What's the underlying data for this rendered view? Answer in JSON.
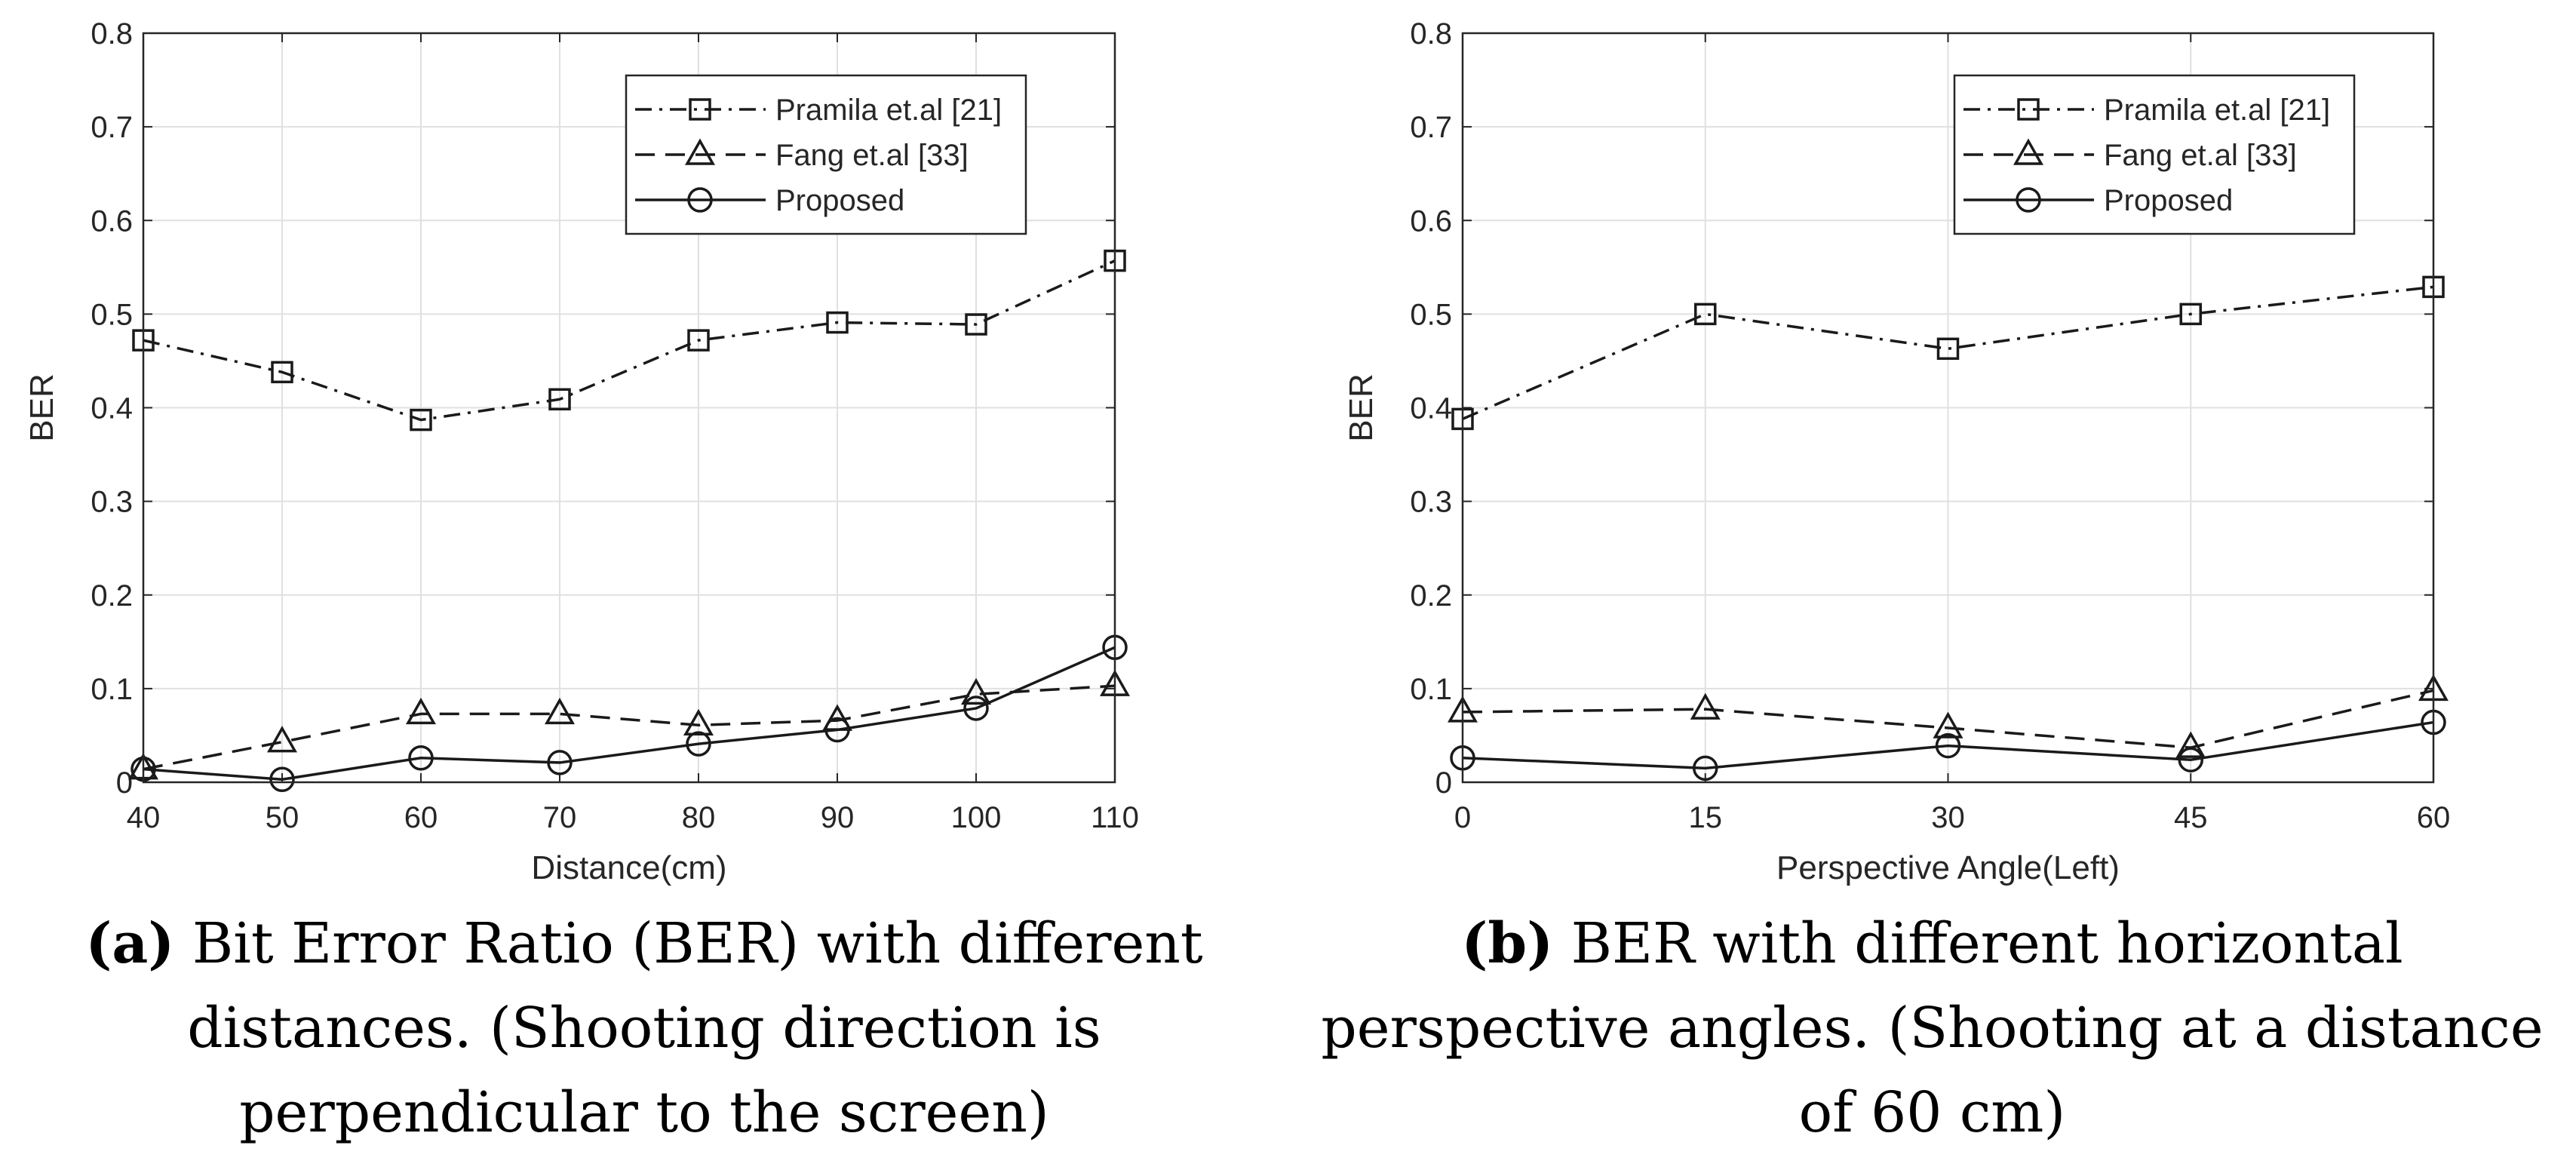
{
  "chart_data": [
    {
      "type": "line",
      "x": [
        40,
        50,
        60,
        70,
        80,
        90,
        100,
        110
      ],
      "xticks": [
        "40",
        "50",
        "60",
        "70",
        "80",
        "90",
        "100",
        "110"
      ],
      "xlim": [
        40,
        110
      ],
      "ylim": [
        0,
        0.8
      ],
      "yticks": [
        "0",
        "0.1",
        "0.2",
        "0.3",
        "0.4",
        "0.5",
        "0.6",
        "0.7",
        "0.8"
      ],
      "xlabel": "Distance(cm)",
      "ylabel": "BER",
      "grid": true,
      "legend_position": "top-right",
      "series": [
        {
          "name": "Pramila et.al [21]",
          "marker": "square",
          "dash": "dash-dot",
          "values": [
            0.472,
            0.438,
            0.387,
            0.409,
            0.472,
            0.491,
            0.489,
            0.557
          ]
        },
        {
          "name": "Fang et.al [33]",
          "marker": "triangle",
          "dash": "dashed",
          "values": [
            0.014,
            0.043,
            0.073,
            0.073,
            0.061,
            0.066,
            0.094,
            0.103
          ]
        },
        {
          "name": "Proposed",
          "marker": "circle",
          "dash": "solid",
          "values": [
            0.014,
            0.003,
            0.026,
            0.021,
            0.041,
            0.056,
            0.079,
            0.144
          ]
        }
      ],
      "caption": {
        "label": "(a)",
        "text": "Bit Error Ratio (BER) with different distances. (Shooting direction is perpendicular to the screen)"
      }
    },
    {
      "type": "line",
      "x": [
        0,
        15,
        30,
        45,
        60
      ],
      "xticks": [
        "0",
        "15",
        "30",
        "45",
        "60"
      ],
      "xlim": [
        0,
        60
      ],
      "ylim": [
        0,
        0.8
      ],
      "yticks": [
        "0",
        "0.1",
        "0.2",
        "0.3",
        "0.4",
        "0.5",
        "0.6",
        "0.7",
        "0.8"
      ],
      "xlabel": "Perspective Angle(Left)",
      "ylabel": "BER",
      "grid": true,
      "legend_position": "top-right",
      "series": [
        {
          "name": "Pramila et.al [21]",
          "marker": "square",
          "dash": "dash-dot",
          "values": [
            0.388,
            0.5,
            0.463,
            0.5,
            0.529
          ]
        },
        {
          "name": "Fang et.al [33]",
          "marker": "triangle",
          "dash": "dashed",
          "values": [
            0.075,
            0.078,
            0.058,
            0.037,
            0.098
          ]
        },
        {
          "name": "Proposed",
          "marker": "circle",
          "dash": "solid",
          "values": [
            0.026,
            0.015,
            0.039,
            0.024,
            0.064
          ]
        }
      ],
      "caption": {
        "label": "(b)",
        "text": "BER with different horizontal perspective angles. (Shooting at a distance of 60 cm)"
      }
    }
  ]
}
